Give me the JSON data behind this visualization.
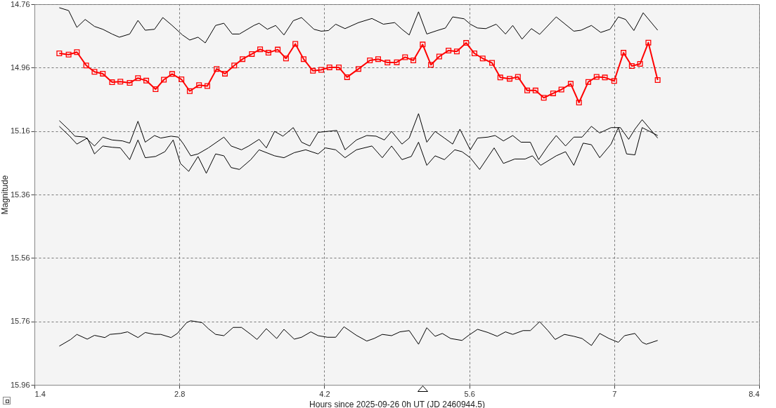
{
  "chart_data": {
    "type": "line",
    "xlabel": "Hours since 2025-09-26 0h UT (JD 2460944.5)",
    "ylabel": "Magnitude",
    "xlim": [
      1.4,
      8.4
    ],
    "xticks": [
      1.4,
      2.8,
      4.2,
      5.6,
      7,
      8.4
    ],
    "ylim": [
      15.96,
      14.76
    ],
    "yticks": [
      14.76,
      14.96,
      15.16,
      15.36,
      15.56,
      15.76,
      15.96
    ],
    "grid": true,
    "series": [
      {
        "color": "#000000",
        "x": [
          1.64,
          1.73,
          1.81,
          1.89,
          1.98,
          2.06,
          2.15,
          2.22,
          2.32,
          2.4,
          2.47,
          2.56,
          2.64,
          2.73,
          2.83,
          2.9,
          2.98,
          3.05,
          3.15,
          3.23,
          3.31,
          3.38,
          3.52,
          3.57,
          3.65,
          3.73,
          3.81,
          3.9,
          3.98,
          4.1,
          4.17,
          4.24,
          4.31,
          4.4,
          4.53,
          4.66,
          4.77,
          4.88,
          4.95,
          5.02,
          5.11,
          5.19,
          5.29,
          5.37,
          5.44,
          5.55,
          5.61,
          5.68,
          5.76,
          5.86,
          5.95,
          6.02,
          6.11,
          6.2,
          6.28,
          6.44,
          6.61,
          6.68,
          6.78,
          6.87,
          6.96,
          7.04,
          7.11,
          7.19,
          7.28,
          7.42
        ],
        "values": [
          14.771,
          14.78,
          14.833,
          14.808,
          14.83,
          14.839,
          14.854,
          14.864,
          14.854,
          14.811,
          14.842,
          14.839,
          14.802,
          14.827,
          14.857,
          14.873,
          14.864,
          14.882,
          14.827,
          14.82,
          14.854,
          14.854,
          14.827,
          14.82,
          14.839,
          14.827,
          14.857,
          14.812,
          14.802,
          14.839,
          14.845,
          14.843,
          14.823,
          14.837,
          14.818,
          14.805,
          14.823,
          14.818,
          14.839,
          14.857,
          14.784,
          14.854,
          14.843,
          14.835,
          14.8,
          14.806,
          14.823,
          14.835,
          14.837,
          14.823,
          14.854,
          14.827,
          14.87,
          14.837,
          14.855,
          14.8,
          14.845,
          14.842,
          14.827,
          14.849,
          14.839,
          14.8,
          14.808,
          14.843,
          14.787,
          14.842
        ]
      },
      {
        "color": "#ff0000",
        "marker": "square",
        "x": [
          1.64,
          1.73,
          1.81,
          1.9,
          1.98,
          2.06,
          2.15,
          2.23,
          2.32,
          2.4,
          2.48,
          2.57,
          2.65,
          2.73,
          2.82,
          2.9,
          2.99,
          3.07,
          3.16,
          3.24,
          3.33,
          3.41,
          3.5,
          3.58,
          3.66,
          3.75,
          3.83,
          3.92,
          4.0,
          4.09,
          4.17,
          4.25,
          4.34,
          4.42,
          4.53,
          4.64,
          4.72,
          4.81,
          4.9,
          4.98,
          5.06,
          5.15,
          5.23,
          5.31,
          5.4,
          5.48,
          5.57,
          5.65,
          5.73,
          5.82,
          5.9,
          5.99,
          6.07,
          6.16,
          6.24,
          6.32,
          6.41,
          6.49,
          6.58,
          6.66,
          6.75,
          6.83,
          6.91,
          7.0,
          7.09,
          7.17,
          7.25,
          7.33,
          7.42
        ],
        "values": [
          14.915,
          14.919,
          14.911,
          14.953,
          14.973,
          14.979,
          15.006,
          15.004,
          15.008,
          14.993,
          15.001,
          15.028,
          14.998,
          14.98,
          14.997,
          15.034,
          15.015,
          15.018,
          14.964,
          14.979,
          14.953,
          14.933,
          14.917,
          14.902,
          14.913,
          14.903,
          14.931,
          14.885,
          14.933,
          14.97,
          14.967,
          14.959,
          14.959,
          14.99,
          14.964,
          14.937,
          14.933,
          14.944,
          14.943,
          14.927,
          14.937,
          14.887,
          14.951,
          14.925,
          14.906,
          14.909,
          14.882,
          14.915,
          14.931,
          14.945,
          14.991,
          14.995,
          14.989,
          15.032,
          15.032,
          15.055,
          15.041,
          15.029,
          15.011,
          15.07,
          15.005,
          14.989,
          14.991,
          15.002,
          14.913,
          14.955,
          14.948,
          14.881,
          14.999
        ]
      },
      {
        "color": "#000000",
        "x": [
          1.64,
          1.74,
          1.79,
          1.89,
          1.98,
          2.06,
          2.15,
          2.25,
          2.32,
          2.4,
          2.47,
          2.56,
          2.62,
          2.72,
          2.79,
          2.84,
          2.91,
          2.98,
          3.08,
          3.23,
          3.3,
          3.4,
          3.47,
          3.57,
          3.64,
          3.72,
          3.8,
          3.9,
          3.98,
          4.06,
          4.14,
          4.23,
          4.32,
          4.4,
          4.51,
          4.61,
          4.7,
          4.78,
          4.85,
          4.95,
          5.02,
          5.11,
          5.19,
          5.27,
          5.36,
          5.44,
          5.51,
          5.61,
          5.68,
          5.78,
          5.85,
          5.93,
          6.02,
          6.1,
          6.19,
          6.27,
          6.36,
          6.44,
          6.53,
          6.61,
          6.69,
          6.78,
          6.86,
          6.97,
          7.06,
          7.14,
          7.2,
          7.27,
          7.42
        ],
        "values": [
          15.127,
          15.158,
          15.176,
          15.179,
          15.207,
          15.179,
          15.188,
          15.191,
          15.198,
          15.129,
          15.195,
          15.174,
          15.182,
          15.176,
          15.179,
          15.201,
          15.238,
          15.232,
          15.213,
          15.179,
          15.207,
          15.219,
          15.207,
          15.186,
          15.213,
          15.161,
          15.176,
          15.149,
          15.195,
          15.207,
          15.164,
          15.161,
          15.158,
          15.219,
          15.188,
          15.174,
          15.176,
          15.188,
          15.161,
          15.201,
          15.182,
          15.105,
          15.195,
          15.161,
          15.182,
          15.201,
          15.154,
          15.219,
          15.182,
          15.179,
          15.174,
          15.191,
          15.174,
          15.195,
          15.195,
          15.25,
          15.207,
          15.174,
          15.207,
          15.179,
          15.179,
          15.145,
          15.166,
          15.149,
          15.149,
          15.186,
          15.154,
          15.124,
          15.182
        ]
      },
      {
        "color": "#000000",
        "x": [
          1.64,
          1.74,
          1.81,
          1.91,
          1.98,
          2.06,
          2.15,
          2.23,
          2.32,
          2.4,
          2.47,
          2.57,
          2.66,
          2.74,
          2.81,
          2.89,
          2.98,
          3.06,
          3.15,
          3.23,
          3.3,
          3.38,
          3.49,
          3.57,
          3.72,
          3.81,
          3.91,
          4.02,
          4.14,
          4.21,
          4.31,
          4.4,
          4.51,
          4.66,
          4.76,
          4.85,
          4.95,
          5.04,
          5.11,
          5.19,
          5.27,
          5.36,
          5.46,
          5.53,
          5.61,
          5.7,
          5.84,
          5.93,
          6.04,
          6.14,
          6.21,
          6.29,
          6.44,
          6.53,
          6.61,
          6.7,
          6.78,
          6.86,
          6.97,
          7.04,
          7.12,
          7.2,
          7.27,
          7.42
        ],
        "values": [
          15.145,
          15.176,
          15.201,
          15.182,
          15.232,
          15.207,
          15.211,
          15.213,
          15.25,
          15.188,
          15.244,
          15.24,
          15.225,
          15.188,
          15.262,
          15.287,
          15.24,
          15.293,
          15.232,
          15.238,
          15.275,
          15.281,
          15.25,
          15.219,
          15.238,
          15.244,
          15.228,
          15.219,
          15.232,
          15.213,
          15.219,
          15.244,
          15.219,
          15.207,
          15.244,
          15.207,
          15.25,
          15.24,
          15.195,
          15.268,
          15.238,
          15.25,
          15.219,
          15.225,
          15.244,
          15.281,
          15.213,
          15.262,
          15.248,
          15.248,
          15.238,
          15.268,
          15.238,
          15.225,
          15.268,
          15.198,
          15.203,
          15.244,
          15.201,
          15.149,
          15.232,
          15.235,
          15.149,
          15.174
        ]
      },
      {
        "color": "#000000",
        "x": [
          1.64,
          1.75,
          1.81,
          1.91,
          1.98,
          2.08,
          2.13,
          2.23,
          2.3,
          2.4,
          2.47,
          2.56,
          2.62,
          2.72,
          2.78,
          2.87,
          2.91,
          3.02,
          3.08,
          3.15,
          3.23,
          3.32,
          3.4,
          3.49,
          3.55,
          3.64,
          3.74,
          3.81,
          3.91,
          3.98,
          4.07,
          4.14,
          4.23,
          4.31,
          4.39,
          4.51,
          4.61,
          4.68,
          4.76,
          4.85,
          4.93,
          5.02,
          5.11,
          5.19,
          5.27,
          5.34,
          5.42,
          5.53,
          5.59,
          5.68,
          5.78,
          5.87,
          5.95,
          6.02,
          6.12,
          6.19,
          6.28,
          6.36,
          6.43,
          6.52,
          6.61,
          6.69,
          6.78,
          6.86,
          6.95,
          7.04,
          7.1,
          7.2,
          7.27,
          7.31,
          7.42
        ],
        "values": [
          15.838,
          15.817,
          15.801,
          15.816,
          15.804,
          15.811,
          15.801,
          15.798,
          15.793,
          15.811,
          15.795,
          15.801,
          15.801,
          15.811,
          15.798,
          15.764,
          15.758,
          15.764,
          15.783,
          15.801,
          15.805,
          15.779,
          15.779,
          15.801,
          15.817,
          15.783,
          15.814,
          15.785,
          15.816,
          15.81,
          15.793,
          15.805,
          15.81,
          15.81,
          15.777,
          15.804,
          15.822,
          15.814,
          15.801,
          15.805,
          15.793,
          15.789,
          15.832,
          15.78,
          15.807,
          15.798,
          15.814,
          15.82,
          15.805,
          15.785,
          15.795,
          15.807,
          15.793,
          15.801,
          15.789,
          15.789,
          15.761,
          15.789,
          15.817,
          15.801,
          15.807,
          15.814,
          15.836,
          15.798,
          15.814,
          15.826,
          15.805,
          15.798,
          15.826,
          15.832,
          15.82
        ]
      }
    ]
  }
}
